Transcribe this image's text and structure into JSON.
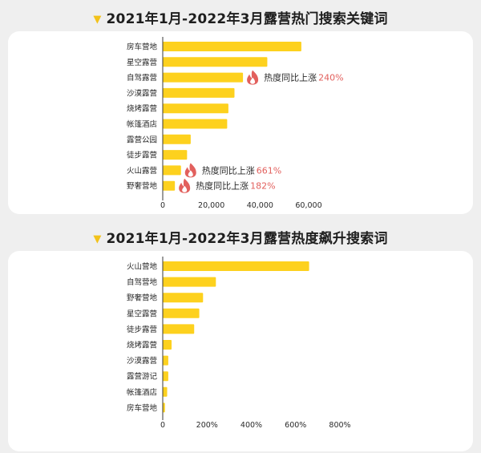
{
  "colors": {
    "bar": "#fdd11e",
    "highlight": "#e2605d",
    "axis": "#3a3a3a",
    "title_marker": "#f2c21b"
  },
  "chart_data": [
    {
      "type": "bar",
      "orientation": "horizontal",
      "title": "2021年1月-2022年3月露营热门搜索关键词",
      "categories": [
        "房车营地",
        "星空露营",
        "自驾露营",
        "沙漠露营",
        "烧烤露营",
        "帐篷酒店",
        "露营公园",
        "徒步露营",
        "火山露营",
        "野奢营地"
      ],
      "values": [
        57000,
        43000,
        33000,
        29500,
        27000,
        26500,
        11500,
        10000,
        7500,
        5000
      ],
      "xlim": [
        0,
        60000
      ],
      "xticks": [
        "0",
        "20,000",
        "40,000",
        "60,000"
      ],
      "xtick_values": [
        0,
        20000,
        40000,
        60000
      ],
      "grid": false,
      "annotations": [
        {
          "category": "自驾露营",
          "prefix": "热度同比上涨",
          "value": "240%",
          "icon": "fire-icon"
        },
        {
          "category": "火山露营",
          "prefix": "热度同比上涨",
          "value": "661%",
          "icon": "fire-icon"
        },
        {
          "category": "野奢营地",
          "prefix": "热度同比上涨",
          "value": "182%",
          "icon": "fire-icon"
        }
      ]
    },
    {
      "type": "bar",
      "orientation": "horizontal",
      "title": "2021年1月-2022年3月露营热度飙升搜索词",
      "categories": [
        "火山营地",
        "自驾营地",
        "野奢营地",
        "星空露营",
        "徒步露营",
        "烧烤露营",
        "沙漠露营",
        "露营游记",
        "帐篷酒店",
        "房车营地"
      ],
      "values": [
        661,
        240,
        182,
        165,
        142,
        40,
        25,
        25,
        20,
        10
      ],
      "xlim": [
        0,
        800
      ],
      "xticks": [
        "0",
        "200%",
        "400%",
        "600%",
        "800%"
      ],
      "xtick_values": [
        0,
        200,
        400,
        600,
        800
      ],
      "unit": "%",
      "grid": false
    }
  ]
}
